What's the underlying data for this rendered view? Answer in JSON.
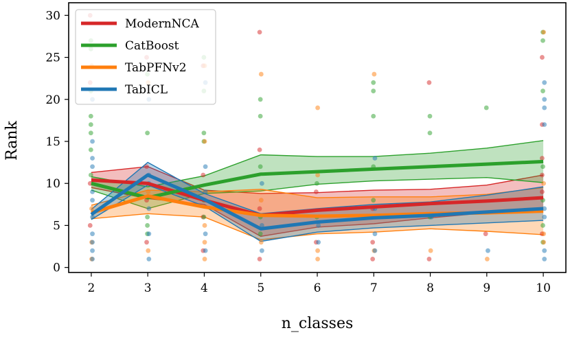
{
  "chart_data": {
    "type": "line",
    "title": "",
    "xlabel": "n_classes",
    "ylabel": "Rank",
    "x": [
      2,
      3,
      4,
      5,
      6,
      7,
      8,
      9,
      10
    ],
    "xlim": [
      1.6,
      10.4
    ],
    "ylim": [
      -0.6,
      31.5
    ],
    "xticks": [
      2,
      3,
      4,
      5,
      6,
      7,
      8,
      9,
      10
    ],
    "yticks": [
      0,
      5,
      10,
      15,
      20,
      25,
      30
    ],
    "legend_position": "upper-left",
    "series": [
      {
        "name": "ModernNCA",
        "color": "#d62728",
        "mean": [
          10.4,
          10.0,
          8.0,
          6.2,
          6.8,
          7.2,
          7.6,
          7.9,
          8.3
        ],
        "lower": [
          9.5,
          8.2,
          7.5,
          3.7,
          4.8,
          5.2,
          5.9,
          6.5,
          7.0
        ],
        "upper": [
          11.3,
          12.0,
          9.2,
          8.8,
          8.9,
          9.2,
          9.3,
          9.8,
          11.0
        ],
        "points": [
          [
            2,
            30
          ],
          [
            2,
            22
          ],
          [
            2,
            10
          ],
          [
            2,
            5
          ],
          [
            3,
            25
          ],
          [
            3,
            12
          ],
          [
            3,
            8
          ],
          [
            3,
            3
          ],
          [
            4,
            24
          ],
          [
            4,
            11
          ],
          [
            4,
            6
          ],
          [
            4,
            2
          ],
          [
            5,
            28
          ],
          [
            5,
            14
          ],
          [
            5,
            7
          ],
          [
            5,
            1
          ],
          [
            6,
            9
          ],
          [
            6,
            3
          ],
          [
            7,
            7
          ],
          [
            7,
            3
          ],
          [
            7,
            1
          ],
          [
            8,
            22
          ],
          [
            8,
            1
          ],
          [
            9,
            4
          ],
          [
            10,
            25
          ],
          [
            10,
            17
          ],
          [
            10,
            13
          ],
          [
            10,
            11
          ],
          [
            10,
            9
          ],
          [
            10,
            4
          ]
        ]
      },
      {
        "name": "CatBoost",
        "color": "#2ca02c",
        "mean": [
          10.0,
          8.3,
          9.8,
          11.1,
          11.4,
          11.7,
          12.0,
          12.3,
          12.6
        ],
        "lower": [
          9.2,
          7.0,
          8.8,
          9.1,
          9.9,
          10.3,
          10.5,
          10.7,
          10.1
        ],
        "upper": [
          10.8,
          9.6,
          10.9,
          13.4,
          13.2,
          13.2,
          13.6,
          14.2,
          15.1
        ],
        "points": [
          [
            2,
            27
          ],
          [
            2,
            26
          ],
          [
            2,
            21
          ],
          [
            2,
            18
          ],
          [
            2,
            17
          ],
          [
            2,
            16
          ],
          [
            2,
            14
          ],
          [
            2,
            11
          ],
          [
            3,
            23
          ],
          [
            3,
            16
          ],
          [
            3,
            6
          ],
          [
            3,
            5
          ],
          [
            3,
            4
          ],
          [
            4,
            25
          ],
          [
            4,
            21
          ],
          [
            4,
            16
          ],
          [
            4,
            15
          ],
          [
            4,
            8
          ],
          [
            4,
            6
          ],
          [
            5,
            20
          ],
          [
            5,
            18
          ],
          [
            5,
            12
          ],
          [
            5,
            6
          ],
          [
            5,
            4
          ],
          [
            6,
            10
          ],
          [
            6,
            6
          ],
          [
            7,
            22
          ],
          [
            7,
            21
          ],
          [
            7,
            18
          ],
          [
            7,
            12
          ],
          [
            7,
            8
          ],
          [
            8,
            18
          ],
          [
            8,
            16
          ],
          [
            8,
            6
          ],
          [
            9,
            19
          ],
          [
            10,
            28
          ],
          [
            10,
            27
          ],
          [
            10,
            21
          ],
          [
            10,
            12
          ],
          [
            10,
            8
          ],
          [
            10,
            5
          ],
          [
            10,
            3
          ]
        ]
      },
      {
        "name": "TabPFNv2",
        "color": "#ff7f0e",
        "mean": [
          6.5,
          8.5,
          7.2,
          6.2,
          6.1,
          6.2,
          6.4,
          6.5,
          6.7
        ],
        "lower": [
          5.8,
          6.4,
          6.0,
          3.3,
          4.0,
          4.2,
          4.6,
          4.3,
          3.9
        ],
        "upper": [
          7.4,
          9.2,
          9.0,
          9.3,
          8.3,
          8.4,
          8.4,
          8.7,
          9.5
        ],
        "points": [
          [
            2,
            24
          ],
          [
            2,
            7
          ],
          [
            2,
            3
          ],
          [
            2,
            1
          ],
          [
            3,
            22
          ],
          [
            3,
            9
          ],
          [
            3,
            2
          ],
          [
            4,
            24
          ],
          [
            4,
            15
          ],
          [
            4,
            5
          ],
          [
            4,
            3
          ],
          [
            4,
            1
          ],
          [
            5,
            23
          ],
          [
            5,
            8
          ],
          [
            5,
            3
          ],
          [
            6,
            19
          ],
          [
            6,
            11
          ],
          [
            6,
            2
          ],
          [
            6,
            1
          ],
          [
            7,
            23
          ],
          [
            7,
            2
          ],
          [
            8,
            2
          ],
          [
            9,
            1
          ],
          [
            10,
            28
          ],
          [
            10,
            10
          ],
          [
            10,
            4
          ],
          [
            10,
            3
          ]
        ]
      },
      {
        "name": "TabICL",
        "color": "#1f77b4",
        "mean": [
          6.3,
          11.0,
          8.1,
          4.6,
          5.4,
          5.9,
          6.2,
          6.6,
          7.0
        ],
        "lower": [
          5.7,
          9.8,
          7.3,
          3.1,
          4.2,
          4.7,
          5.0,
          5.3,
          5.6
        ],
        "upper": [
          6.9,
          12.5,
          8.8,
          6.4,
          7.0,
          7.5,
          7.8,
          8.6,
          9.6
        ],
        "points": [
          [
            2,
            20
          ],
          [
            2,
            15
          ],
          [
            2,
            13
          ],
          [
            2,
            12
          ],
          [
            2,
            9
          ],
          [
            2,
            8
          ],
          [
            2,
            6
          ],
          [
            2,
            4
          ],
          [
            2,
            3
          ],
          [
            2,
            2
          ],
          [
            2,
            1
          ],
          [
            3,
            20
          ],
          [
            3,
            11
          ],
          [
            3,
            10
          ],
          [
            3,
            7
          ],
          [
            3,
            4
          ],
          [
            3,
            1
          ],
          [
            4,
            22
          ],
          [
            4,
            12
          ],
          [
            4,
            9
          ],
          [
            4,
            4
          ],
          [
            4,
            2
          ],
          [
            5,
            10
          ],
          [
            5,
            5
          ],
          [
            5,
            2
          ],
          [
            6,
            5
          ],
          [
            6,
            3
          ],
          [
            7,
            13
          ],
          [
            7,
            7
          ],
          [
            7,
            4
          ],
          [
            7,
            2
          ],
          [
            8,
            6
          ],
          [
            9,
            2
          ],
          [
            10,
            22
          ],
          [
            10,
            20
          ],
          [
            10,
            19
          ],
          [
            10,
            17
          ],
          [
            10,
            7
          ],
          [
            10,
            6
          ],
          [
            10,
            2
          ],
          [
            10,
            1
          ]
        ]
      }
    ]
  }
}
